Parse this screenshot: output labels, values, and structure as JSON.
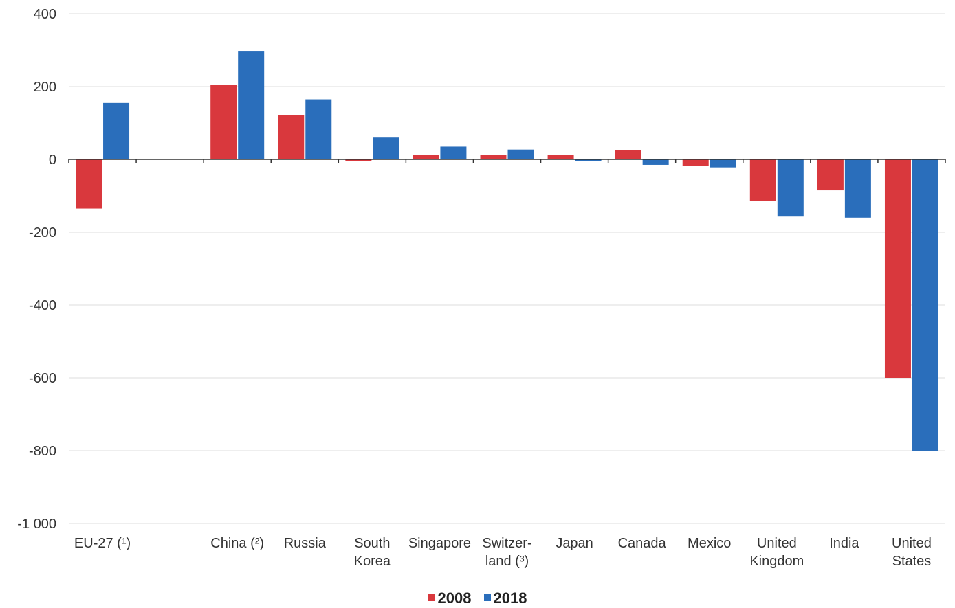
{
  "chart_data": {
    "type": "bar",
    "categories": [
      [
        "EU-27 (¹)"
      ],
      [
        ""
      ],
      [
        "China (²)"
      ],
      [
        "Russia"
      ],
      [
        "South",
        "Korea"
      ],
      [
        "Singapore"
      ],
      [
        "Switzer-",
        "land (³)"
      ],
      [
        "Japan"
      ],
      [
        "Canada"
      ],
      [
        "Mexico"
      ],
      [
        "United",
        "Kingdom"
      ],
      [
        "India"
      ],
      [
        "United",
        "States"
      ]
    ],
    "series": [
      {
        "name": "2008",
        "color": "#d9383d",
        "values": [
          -135,
          null,
          205,
          122,
          -5,
          12,
          12,
          12,
          26,
          -18,
          -115,
          -85,
          -600
        ]
      },
      {
        "name": "2018",
        "color": "#2a6ebb",
        "values": [
          155,
          null,
          298,
          165,
          60,
          35,
          27,
          -5,
          -15,
          -22,
          -157,
          -160,
          -800
        ]
      }
    ],
    "yticks": [
      {
        "value": 400,
        "label": "400"
      },
      {
        "value": 200,
        "label": "200"
      },
      {
        "value": 0,
        "label": "0"
      },
      {
        "value": -200,
        "label": "-200"
      },
      {
        "value": -400,
        "label": "-400"
      },
      {
        "value": -600,
        "label": "-600"
      },
      {
        "value": -800,
        "label": "-800"
      },
      {
        "value": -1000,
        "label": "-1 000"
      }
    ],
    "ylim": [
      -1000,
      400
    ],
    "grid": true,
    "legend_position": "bottom-center",
    "title": "",
    "xlabel": "",
    "ylabel": ""
  }
}
